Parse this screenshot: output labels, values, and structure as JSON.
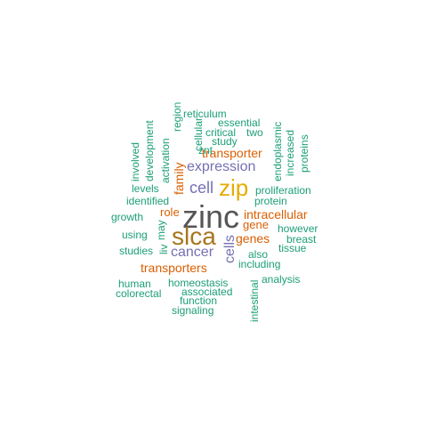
{
  "colors": {
    "teal": "#1b9e77",
    "orange": "#d95f02",
    "purple": "#7570b3",
    "gold": "#e6ab02",
    "brown": "#a6761d",
    "dark": "#555555"
  },
  "words": [
    {
      "text": "zinc",
      "color": "#555555"
    },
    {
      "text": "slca",
      "color": "#a6761d"
    },
    {
      "text": "zip",
      "color": "#e6ab02"
    },
    {
      "text": "expression",
      "color": "#7570b3"
    },
    {
      "text": "cell",
      "color": "#7570b3"
    },
    {
      "text": "cancer",
      "color": "#7570b3"
    },
    {
      "text": "cells",
      "color": "#7570b3"
    },
    {
      "text": "transporter",
      "color": "#d95f02"
    },
    {
      "text": "transporters",
      "color": "#d95f02"
    },
    {
      "text": "intracellular",
      "color": "#d95f02"
    },
    {
      "text": "genes",
      "color": "#d95f02"
    },
    {
      "text": "gene",
      "color": "#d95f02"
    },
    {
      "text": "family",
      "color": "#d95f02"
    },
    {
      "text": "role",
      "color": "#d95f02"
    },
    {
      "text": "reticulum",
      "color": "#1b9e77"
    },
    {
      "text": "essential",
      "color": "#1b9e77"
    },
    {
      "text": "critical",
      "color": "#1b9e77"
    },
    {
      "text": "two",
      "color": "#1b9e77"
    },
    {
      "text": "study",
      "color": "#1b9e77"
    },
    {
      "text": "znt",
      "color": "#1b9e77"
    },
    {
      "text": "region",
      "color": "#1b9e77"
    },
    {
      "text": "cellular",
      "color": "#1b9e77"
    },
    {
      "text": "activation",
      "color": "#1b9e77"
    },
    {
      "text": "development",
      "color": "#1b9e77"
    },
    {
      "text": "involved",
      "color": "#1b9e77"
    },
    {
      "text": "levels",
      "color": "#1b9e77"
    },
    {
      "text": "identified",
      "color": "#1b9e77"
    },
    {
      "text": "growth",
      "color": "#1b9e77"
    },
    {
      "text": "using",
      "color": "#1b9e77"
    },
    {
      "text": "studies",
      "color": "#1b9e77"
    },
    {
      "text": "liv",
      "color": "#1b9e77"
    },
    {
      "text": "may",
      "color": "#1b9e77"
    },
    {
      "text": "endoplasmic",
      "color": "#1b9e77"
    },
    {
      "text": "increased",
      "color": "#1b9e77"
    },
    {
      "text": "proteins",
      "color": "#1b9e77"
    },
    {
      "text": "proliferation",
      "color": "#1b9e77"
    },
    {
      "text": "protein",
      "color": "#1b9e77"
    },
    {
      "text": "however",
      "color": "#1b9e77"
    },
    {
      "text": "breast",
      "color": "#1b9e77"
    },
    {
      "text": "tissue",
      "color": "#1b9e77"
    },
    {
      "text": "also",
      "color": "#1b9e77"
    },
    {
      "text": "including",
      "color": "#1b9e77"
    },
    {
      "text": "analysis",
      "color": "#1b9e77"
    },
    {
      "text": "homeostasis",
      "color": "#1b9e77"
    },
    {
      "text": "associated",
      "color": "#1b9e77"
    },
    {
      "text": "function",
      "color": "#1b9e77"
    },
    {
      "text": "signaling",
      "color": "#1b9e77"
    },
    {
      "text": "human",
      "color": "#1b9e77"
    },
    {
      "text": "colorectal",
      "color": "#1b9e77"
    },
    {
      "text": "intestinal",
      "color": "#1b9e77"
    }
  ]
}
